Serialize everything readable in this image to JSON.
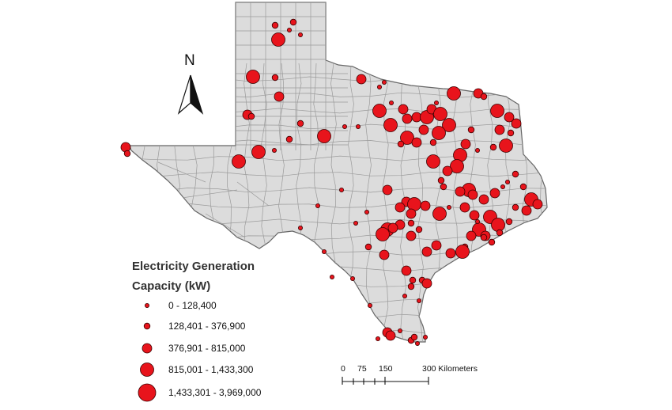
{
  "legend": {
    "title_line1": "Electricity Generation",
    "title_line2": "Capacity (kW)",
    "classes": [
      {
        "label": "0 - 128,400"
      },
      {
        "label": "128,401 - 376,900"
      },
      {
        "label": "376,901 - 815,000"
      },
      {
        "label": "815,001 - 1,433,300"
      },
      {
        "label": "1,433,301 - 3,969,000"
      }
    ]
  },
  "scale_bar": {
    "ticks": [
      "0",
      "75",
      "150",
      "300 Kilometers"
    ]
  },
  "north_arrow": {
    "label": "N"
  },
  "colors": {
    "state_fill": "#dcdcdc",
    "county_lines": "#9a9a9a",
    "plant_fill": "#e8141c",
    "plant_stroke": "#3a0000"
  }
}
